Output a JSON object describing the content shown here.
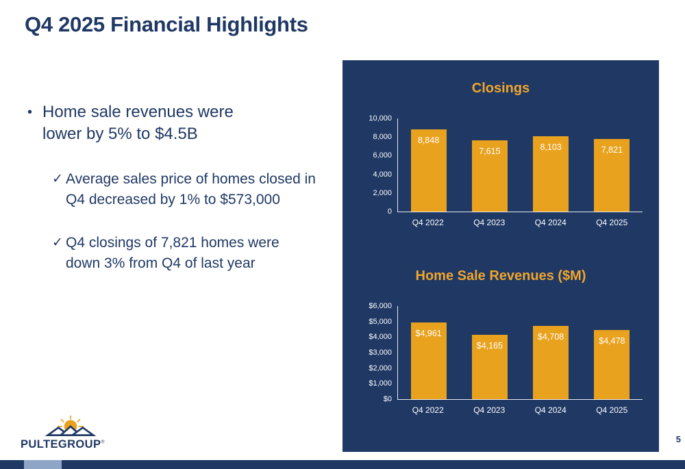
{
  "slide": {
    "title": "Q4 2025 Financial Highlights",
    "page_number": "5"
  },
  "bullets": {
    "bullet_glyph": "•",
    "check_glyph": "✓",
    "main_text": "Home sale revenues were lower by 5% to $4.5B",
    "sub": [
      "Average sales price of homes closed in Q4 decreased by 1% to $573,000",
      "Q4 closings of 7,821 homes were down 3% from Q4 of last year"
    ]
  },
  "logo": {
    "text": "PULTEGROUP",
    "registered": "®"
  },
  "colors": {
    "navy": "#1F3864",
    "gold_bar": "#E9A21E",
    "gold_title": "#F0A62C",
    "white": "#FFFFFF"
  },
  "chart_data": [
    {
      "type": "bar",
      "title": "Closings",
      "categories": [
        "Q4 2022",
        "Q4 2023",
        "Q4 2024",
        "Q4 2025"
      ],
      "values": [
        8848,
        7615,
        8103,
        7821
      ],
      "value_labels": [
        "8,848",
        "7,615",
        "8,103",
        "7,821"
      ],
      "ylim": [
        0,
        10000
      ],
      "yticks": [
        0,
        2000,
        4000,
        6000,
        8000,
        10000
      ],
      "ytick_labels": [
        "0",
        "2,000",
        "4,000",
        "6,000",
        "8,000",
        "10,000"
      ],
      "bar_color": "#E9A21E",
      "label_position": "inside-top",
      "grid": false,
      "legend": "none"
    },
    {
      "type": "bar",
      "title": "Home Sale Revenues ($M)",
      "categories": [
        "Q4 2022",
        "Q4 2023",
        "Q4 2024",
        "Q4 2025"
      ],
      "values": [
        4961,
        4165,
        4708,
        4478
      ],
      "value_labels": [
        "$4,961",
        "$4,165",
        "$4,708",
        "$4,478"
      ],
      "ylim": [
        0,
        6000
      ],
      "yticks": [
        0,
        1000,
        2000,
        3000,
        4000,
        5000,
        6000
      ],
      "ytick_labels": [
        "$0",
        "$1,000",
        "$2,000",
        "$3,000",
        "$4,000",
        "$5,000",
        "$6,000"
      ],
      "bar_color": "#E9A21E",
      "label_position": "inside-top",
      "grid": false,
      "legend": "none"
    }
  ]
}
